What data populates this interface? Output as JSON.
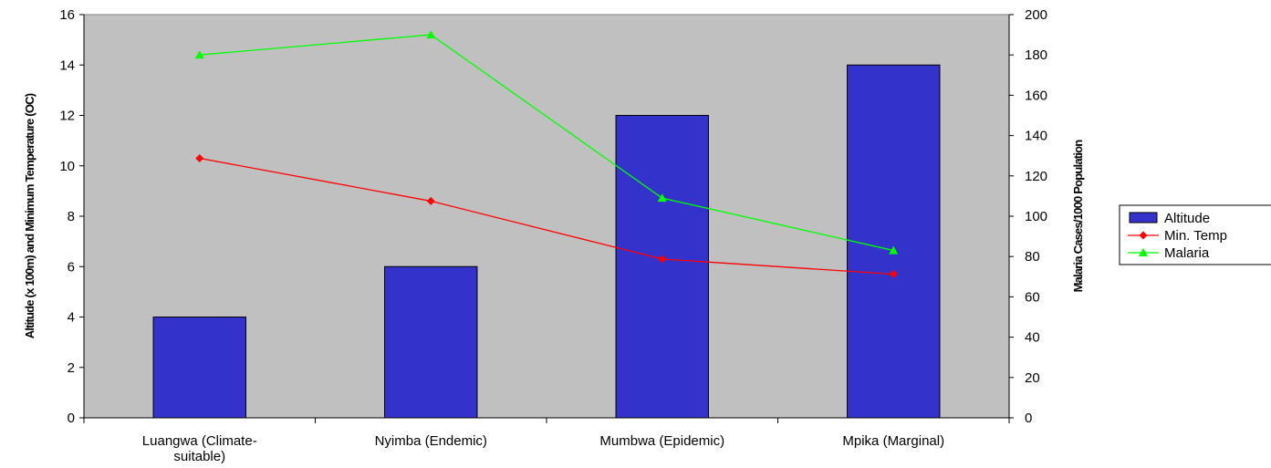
{
  "chart_data": {
    "type": "bar",
    "categories": [
      [
        "Luangwa (Climate-",
        "suitable)"
      ],
      [
        "Nyimba (Endemic)"
      ],
      [
        "Mumbwa (Epidemic)"
      ],
      [
        "Mpika (Marginal)"
      ]
    ],
    "series": [
      {
        "name": "Altitude",
        "type": "bar",
        "axis": "left",
        "color": "#3333cc",
        "values": [
          4,
          6,
          12,
          14
        ]
      },
      {
        "name": "Min. Temp",
        "type": "line",
        "axis": "left",
        "color": "#ff0000",
        "marker": "diamond",
        "values": [
          10.3,
          8.6,
          6.3,
          5.7
        ]
      },
      {
        "name": "Malaria",
        "type": "line",
        "axis": "right",
        "color": "#00ff00",
        "marker": "triangle",
        "values": [
          180,
          190,
          109,
          83
        ]
      }
    ],
    "ylabel": "Altitude (x 100m) and Minimum Temperature (OC)",
    "y2label": "Malaria Cases/1000 Population",
    "ylim": [
      0,
      16
    ],
    "y2lim": [
      0,
      200
    ],
    "yticks": [
      0,
      2,
      4,
      6,
      8,
      10,
      12,
      14,
      16
    ],
    "y2ticks": [
      0,
      20,
      40,
      60,
      80,
      100,
      120,
      140,
      160,
      180,
      200
    ],
    "plot_background": "#c0c0c0",
    "grid": false,
    "legend_position": "right"
  }
}
